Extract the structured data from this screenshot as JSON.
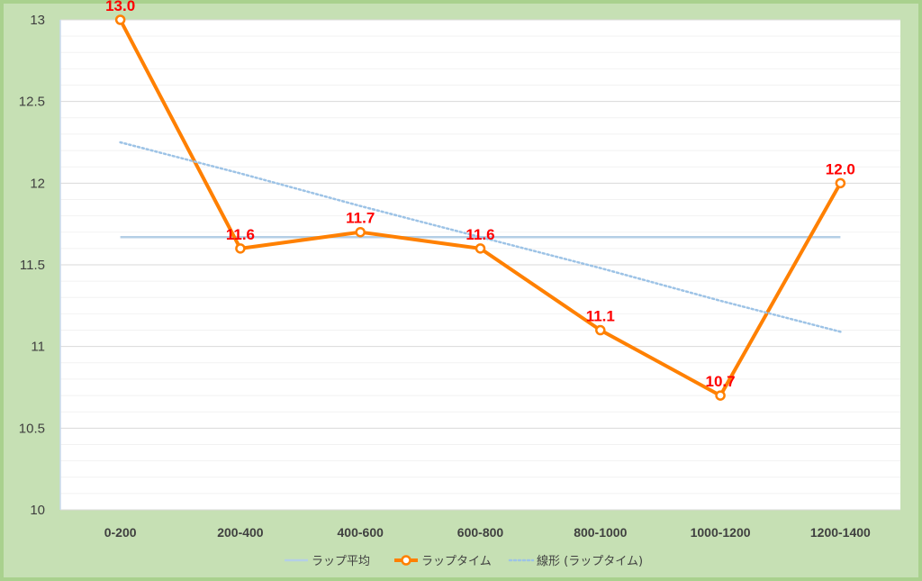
{
  "chart_data": {
    "type": "line",
    "title": "",
    "xlabel": "",
    "ylabel": "",
    "categories": [
      "0-200",
      "200-400",
      "400-600",
      "600-800",
      "800-1000",
      "1000-1200",
      "1200-1400"
    ],
    "ylim": [
      10,
      13
    ],
    "yticks": [
      10,
      10.5,
      11,
      11.5,
      12,
      12.5,
      13
    ],
    "ytick_labels": [
      "10",
      "10.5",
      "11",
      "11.5",
      "12",
      "12.5",
      "13"
    ],
    "grid": true,
    "legend_position": "bottom",
    "series": [
      {
        "name": "ラップ平均",
        "style": "solid-line",
        "color": "#b4cfe6",
        "values": [
          11.67,
          11.67,
          11.67,
          11.67,
          11.67,
          11.67,
          11.67
        ]
      },
      {
        "name": "ラップタイム",
        "style": "line-markers",
        "color": "#ff8000",
        "values": [
          13.0,
          11.6,
          11.7,
          11.6,
          11.1,
          10.7,
          12.0
        ],
        "data_labels": [
          "13.0",
          "11.6",
          "11.7",
          "11.6",
          "11.1",
          "10.7",
          "12.0"
        ],
        "label_color": "#ff0000"
      },
      {
        "name": "線形 (ラップタイム)",
        "style": "dotted-line",
        "color": "#9dc3e6",
        "values": [
          12.25,
          12.06,
          11.86,
          11.67,
          11.48,
          11.28,
          11.09
        ]
      }
    ]
  }
}
